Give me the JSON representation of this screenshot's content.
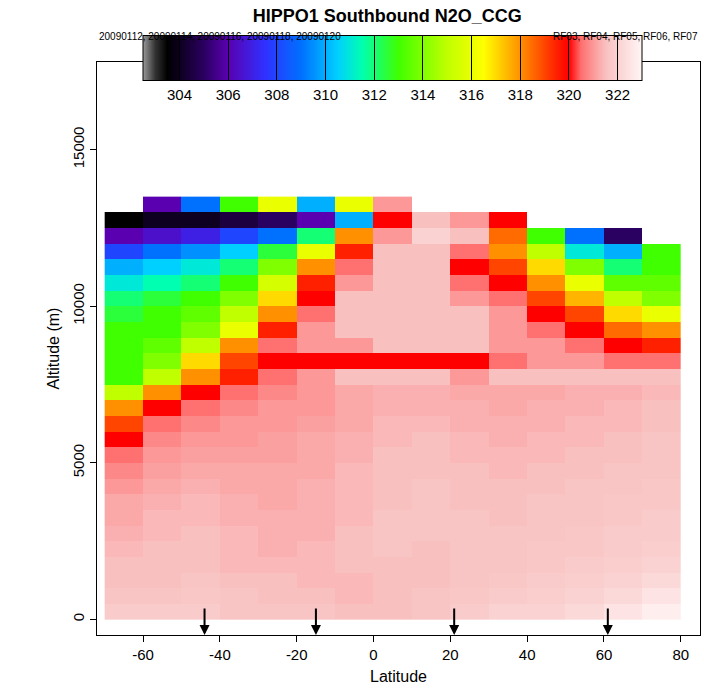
{
  "chart_data": {
    "type": "heatmap",
    "title": "HIPPO1 Southbound N2O_CCG",
    "annotations": [
      "20090112, 20090114, 20090116, 20090118, 20090120",
      "RF03, RF04, RF05, RF06, RF07"
    ],
    "x_label": "Latitude",
    "y_label": "Altitude (m)",
    "x": [
      -65,
      -55,
      -45,
      -35,
      -25,
      -15,
      -5,
      5,
      15,
      25,
      35,
      45,
      55,
      65,
      75
    ],
    "y": [
      250,
      750,
      1250,
      1750,
      2250,
      2750,
      3250,
      3750,
      4250,
      4750,
      5250,
      5750,
      6250,
      6750,
      7250,
      7750,
      8250,
      8750,
      9250,
      9750,
      10250,
      10750,
      11250,
      11750,
      12250,
      12750,
      13250
    ],
    "z": [
      [
        321.8,
        321.8,
        321.8,
        321.6,
        321.6,
        321.6,
        321.5,
        321.5,
        321.6,
        321.8,
        322,
        322,
        322.2,
        322.5,
        322.8
      ],
      [
        321.6,
        321.6,
        321.7,
        321.6,
        321.5,
        321.5,
        321.4,
        321.5,
        321.6,
        321.7,
        321.8,
        321.9,
        322,
        322.2,
        322.5
      ],
      [
        321.5,
        321.5,
        321.6,
        321.5,
        321.5,
        321.4,
        321.4,
        321.5,
        321.5,
        321.6,
        321.7,
        321.8,
        321.9,
        322,
        322.2
      ],
      [
        321.5,
        321.5,
        321.5,
        321.4,
        321.4,
        321.4,
        321.5,
        321.5,
        321.5,
        321.6,
        321.6,
        321.7,
        321.8,
        321.9,
        322
      ],
      [
        321.4,
        321.5,
        321.5,
        321.4,
        321.3,
        321.4,
        321.5,
        321.6,
        321.5,
        321.6,
        321.6,
        321.7,
        321.7,
        321.8,
        321.9
      ],
      [
        321.3,
        321.4,
        321.5,
        321.4,
        321.3,
        321.3,
        321.5,
        321.6,
        321.6,
        321.6,
        321.6,
        321.6,
        321.7,
        321.8,
        321.8
      ],
      [
        321.2,
        321.4,
        321.4,
        321.3,
        321.3,
        321.3,
        321.4,
        321.6,
        321.6,
        321.6,
        321.5,
        321.6,
        321.6,
        321.7,
        321.8
      ],
      [
        321.2,
        321.3,
        321.4,
        321.3,
        321.2,
        321.3,
        321.4,
        321.5,
        321.6,
        321.5,
        321.5,
        321.6,
        321.6,
        321.7,
        321.7
      ],
      [
        321,
        321.2,
        321.3,
        321.2,
        321.2,
        321.3,
        321.4,
        321.5,
        321.6,
        321.5,
        321.5,
        321.5,
        321.6,
        321.6,
        321.7
      ],
      [
        320.8,
        321.1,
        321.2,
        321.2,
        321.2,
        321.2,
        321.4,
        321.5,
        321.5,
        321.5,
        321.4,
        321.5,
        321.5,
        321.6,
        321.6
      ],
      [
        320.5,
        321,
        321.1,
        321.1,
        321.1,
        321.2,
        321.3,
        321.5,
        321.5,
        321.4,
        321.4,
        321.4,
        321.5,
        321.5,
        321.6
      ],
      [
        320,
        320.8,
        321,
        321,
        321.1,
        321.2,
        321.3,
        321.4,
        321.5,
        321.4,
        321.3,
        321.4,
        321.4,
        321.5,
        321.6
      ],
      [
        319,
        320.5,
        320.8,
        321,
        321,
        321.1,
        321.2,
        321.4,
        321.4,
        321.3,
        321.3,
        321.3,
        321.4,
        321.4,
        321.5
      ],
      [
        318,
        320,
        320.5,
        320.8,
        321,
        321,
        321.2,
        321.3,
        321.3,
        321.3,
        321.2,
        321.3,
        321.3,
        321.4,
        321.5
      ],
      [
        315,
        318,
        320,
        320.5,
        320.8,
        321,
        321.2,
        321.3,
        321.3,
        321.2,
        321.2,
        321.2,
        321.3,
        321.3,
        321.4
      ],
      [
        313,
        315,
        318,
        319.5,
        320.5,
        321,
        321.5,
        321.5,
        321.5,
        321,
        321.5,
        321.5,
        321.5,
        321.5,
        321.5
      ],
      [
        313,
        314,
        317,
        319,
        320,
        320,
        320,
        320,
        320,
        320,
        320.5,
        321,
        321,
        320.5,
        320.5
      ],
      [
        313,
        313.5,
        315,
        318,
        320.5,
        321,
        321,
        321.5,
        321.5,
        321.5,
        321,
        321,
        320.5,
        320,
        319.5
      ],
      [
        313,
        313,
        314,
        316,
        319.5,
        321,
        321.5,
        321.5,
        321.5,
        321.5,
        321,
        320.5,
        320,
        318.5,
        318
      ],
      [
        312.5,
        313,
        313.5,
        315,
        318,
        320.5,
        321.5,
        321.5,
        321.5,
        321.5,
        321,
        320,
        319,
        317,
        316
      ],
      [
        312,
        312.5,
        313,
        314,
        317,
        320,
        321.5,
        321.5,
        321.5,
        321,
        320.5,
        319,
        317.5,
        315,
        314
      ],
      [
        311,
        311.5,
        312,
        313,
        315.5,
        319.5,
        321,
        321.5,
        321.5,
        320.5,
        320,
        318,
        316,
        313.5,
        313.5
      ],
      [
        310,
        310.5,
        311,
        312,
        314,
        318,
        320.5,
        321.5,
        321.5,
        320,
        319,
        317,
        314,
        312,
        313
      ],
      [
        308,
        309,
        309.5,
        310.5,
        312.5,
        316,
        319.5,
        321.5,
        321.5,
        320.5,
        318,
        315,
        311,
        310,
        313
      ],
      [
        306,
        306.5,
        307,
        308,
        309,
        312,
        318,
        321,
        322,
        321.5,
        318.5,
        313,
        309,
        305,
        null
      ],
      [
        303.5,
        304,
        304,
        304.5,
        305,
        306,
        310,
        320,
        321.5,
        321,
        320,
        null,
        null,
        null,
        null
      ],
      [
        null,
        306,
        309,
        313,
        316,
        310,
        316,
        321,
        null,
        null,
        null,
        null,
        null,
        null,
        null
      ]
    ],
    "xlim": [
      -72,
      85
    ],
    "xticks": [
      -60,
      -40,
      -20,
      0,
      20,
      40,
      60,
      80
    ],
    "ylim": [
      -500,
      17800
    ],
    "yticks": [
      0,
      5000,
      10000,
      15000
    ],
    "zlim": [
      302.5,
      323
    ],
    "zticks": [
      304,
      306,
      308,
      310,
      312,
      314,
      316,
      318,
      320,
      322
    ],
    "arrows": [
      -44,
      -15,
      21,
      61
    ]
  }
}
